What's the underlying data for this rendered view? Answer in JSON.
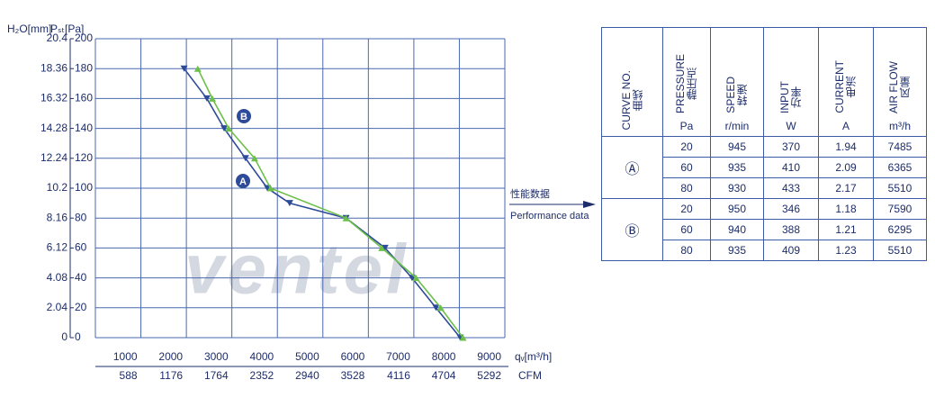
{
  "chart_data": {
    "type": "line",
    "y_label": "Pₛₜ[Pa]",
    "y2_label": "H₂O[mm]",
    "x_label": "qᵥ[m³/h]",
    "x2_label": "CFM",
    "xlim": [
      0,
      9000
    ],
    "xticks": [
      1000,
      2000,
      3000,
      4000,
      5000,
      6000,
      7000,
      8000,
      9000
    ],
    "x2lim": [
      0,
      5292
    ],
    "x2ticks": [
      588,
      1176,
      1764,
      2352,
      2940,
      3528,
      4116,
      4704,
      5292
    ],
    "ylim": [
      0,
      200
    ],
    "yticks": [
      0,
      20,
      40,
      60,
      80,
      100,
      120,
      140,
      160,
      180,
      200
    ],
    "y2lim": [
      0,
      20.4
    ],
    "y2ticks": [
      0,
      2.04,
      4.08,
      6.12,
      8.16,
      10.2,
      12.24,
      14.28,
      16.32,
      18.36,
      20.4
    ],
    "grid": true,
    "series": [
      {
        "name": "A",
        "color": "#2e4a9a",
        "marker": "triangle-down",
        "x": [
          1950,
          2450,
          2830,
          3300,
          3780,
          4270,
          5510,
          6365,
          6960,
          7485,
          8020
        ],
        "values": [
          180,
          160,
          140,
          120,
          100,
          90,
          80,
          60,
          40,
          20,
          0
        ]
      },
      {
        "name": "B",
        "color": "#6cc04a",
        "marker": "triangle-up",
        "x": [
          2250,
          2570,
          2930,
          3500,
          3850,
          5510,
          6295,
          7050,
          7590,
          8080
        ],
        "values": [
          180,
          160,
          140,
          120,
          100,
          80,
          60,
          40,
          20,
          0
        ]
      }
    ],
    "watermark": "ventel",
    "arrow_label": [
      "性能数据",
      "Performance data"
    ]
  },
  "table": {
    "header": [
      {
        "en": "CURVE NO.",
        "zh": "曲线"
      },
      {
        "en": "PRESSURE",
        "zh": "静压点",
        "unit": "Pa"
      },
      {
        "en": "SPEED",
        "zh": "转速",
        "unit": "r/min"
      },
      {
        "en": "INPUT",
        "zh": "功率",
        "unit": "W"
      },
      {
        "en": "CURRENT",
        "zh": "电流",
        "unit": "A"
      },
      {
        "en": "AIR FLOW",
        "zh": "风量",
        "unit": "m³/h"
      }
    ],
    "groups": [
      {
        "curve": "Ⓐ",
        "rows": [
          [
            20,
            945,
            370,
            1.94,
            7485
          ],
          [
            60,
            935,
            410,
            2.09,
            6365
          ],
          [
            80,
            930,
            433,
            2.17,
            5510
          ]
        ]
      },
      {
        "curve": "Ⓑ",
        "rows": [
          [
            20,
            950,
            346,
            1.18,
            7590
          ],
          [
            60,
            940,
            388,
            1.21,
            6295
          ],
          [
            80,
            935,
            409,
            1.23,
            5510
          ]
        ]
      }
    ]
  }
}
